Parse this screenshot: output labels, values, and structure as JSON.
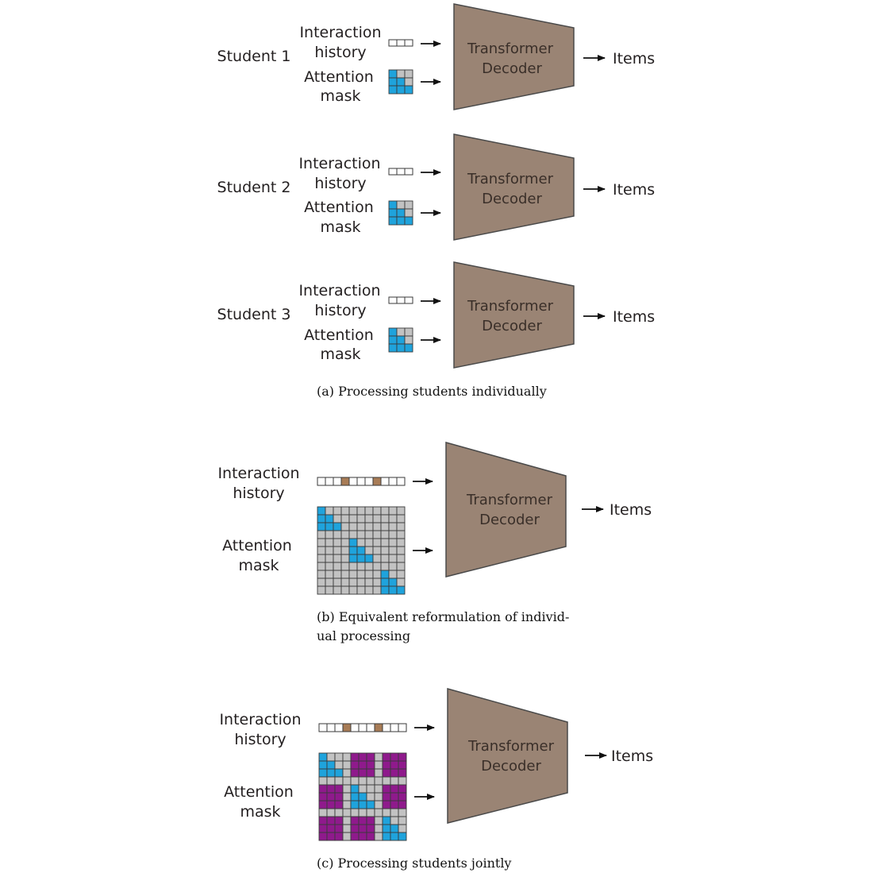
{
  "colors": {
    "decoder_fill": "#9a8474",
    "mask_active": "#1fa3dc",
    "mask_inactive": "#c2c2c2",
    "mask_joint": "#8f1a8c",
    "history_marker": "#a87c56",
    "grid_line": "#3a3a3a"
  },
  "panel_a": {
    "caption": "(a) Processing students individually",
    "rows": [
      {
        "student": "Student 1",
        "history_label": [
          "Interaction",
          "history"
        ],
        "mask_label": [
          "Attention",
          "mask"
        ],
        "decoder": [
          "Transformer",
          "Decoder"
        ],
        "output": "Items"
      },
      {
        "student": "Student 2",
        "history_label": [
          "Interaction",
          "history"
        ],
        "mask_label": [
          "Attention",
          "mask"
        ],
        "decoder": [
          "Transformer",
          "Decoder"
        ],
        "output": "Items"
      },
      {
        "student": "Student 3",
        "history_label": [
          "Interaction",
          "history"
        ],
        "mask_label": [
          "Attention",
          "mask"
        ],
        "decoder": [
          "Transformer",
          "Decoder"
        ],
        "output": "Items"
      }
    ],
    "history_cells": 3,
    "mask_pattern": [
      "ABB",
      "AAB",
      "AAA"
    ]
  },
  "panel_b": {
    "caption": [
      "(b) Equivalent reformulation of individ-",
      "ual processing"
    ],
    "history_label": [
      "Interaction",
      "history"
    ],
    "mask_label": [
      "Attention",
      "mask"
    ],
    "decoder": [
      "Transformer",
      "Decoder"
    ],
    "output": "Items",
    "history_cells": [
      "W",
      "W",
      "W",
      "M",
      "W",
      "W",
      "W",
      "M",
      "W",
      "W",
      "W"
    ],
    "mask_pattern": [
      "ABBBBBBBBBB",
      "AABBBBBBBBB",
      "AAABBBBBBBB",
      "BBBBBBBBBBB",
      "BBBBABBBBBB",
      "BBBBAABBBBB",
      "BBBBAAABBBB",
      "BBBBBBBBBBB",
      "BBBBBBBBABB",
      "BBBBBBBBAAB",
      "BBBBBBBBAAA"
    ]
  },
  "panel_c": {
    "caption": "(c) Processing students jointly",
    "history_label": [
      "Interaction",
      "history"
    ],
    "mask_label": [
      "Attention",
      "mask"
    ],
    "decoder": [
      "Transformer",
      "Decoder"
    ],
    "output": "Items",
    "history_cells": [
      "W",
      "W",
      "W",
      "M",
      "W",
      "W",
      "W",
      "M",
      "W",
      "W",
      "W"
    ],
    "mask_pattern": [
      "ABBBCCCBCCC",
      "AABBCCCBCCC",
      "AAABCCCBCCC",
      "BBBBBBBBBBB",
      "CCCBABBBCCC",
      "CCCBAABBCCC",
      "CCCBAAABCCC",
      "BBBBBBBBBBB",
      "CCCBCCCBABB",
      "CCCBCCCBAAB",
      "CCCBCCCBAAA"
    ]
  }
}
